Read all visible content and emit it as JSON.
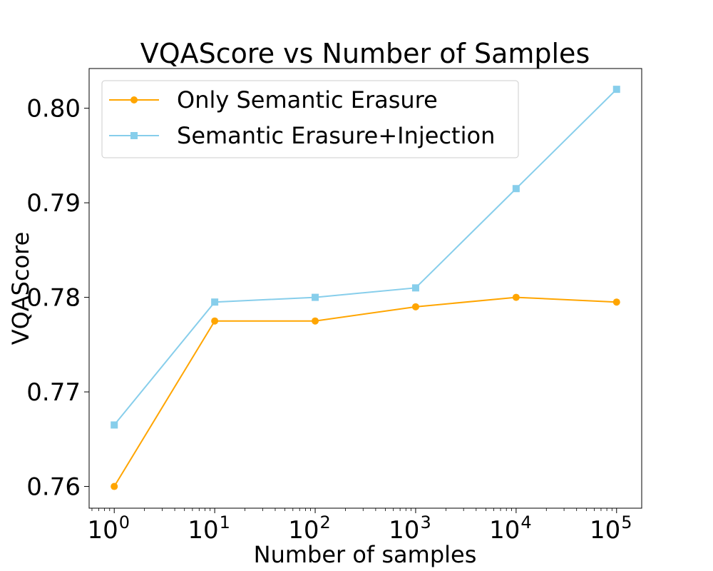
{
  "chart_data": {
    "type": "line",
    "title": "VQAScore vs Number of Samples",
    "xlabel": "Number of samples",
    "ylabel": "VQAScore",
    "xscale": "log",
    "x": [
      1,
      10,
      100,
      1000,
      10000,
      100000
    ],
    "x_tick_bases": [
      "10",
      "10",
      "10",
      "10",
      "10",
      "10"
    ],
    "x_tick_exponents": [
      "0",
      "1",
      "2",
      "3",
      "4",
      "5"
    ],
    "y_ticks": [
      "0.76",
      "0.77",
      "0.78",
      "0.79",
      "0.80"
    ],
    "y_tick_values": [
      0.76,
      0.77,
      0.78,
      0.79,
      0.8
    ],
    "ylim": [
      0.7577,
      0.8042
    ],
    "xlim_log": [
      -0.25,
      5.25
    ],
    "grid": false,
    "legend_position": "upper-left",
    "series": [
      {
        "name": "Only Semantic Erasure",
        "color": "#FFA500",
        "marker": "circle",
        "values": [
          0.76,
          0.7775,
          0.7775,
          0.779,
          0.78,
          0.7795
        ]
      },
      {
        "name": "Semantic Erasure+Injection",
        "color": "#87CEEB",
        "marker": "square",
        "values": [
          0.7665,
          0.7795,
          0.78,
          0.781,
          0.7915,
          0.802
        ]
      }
    ]
  }
}
